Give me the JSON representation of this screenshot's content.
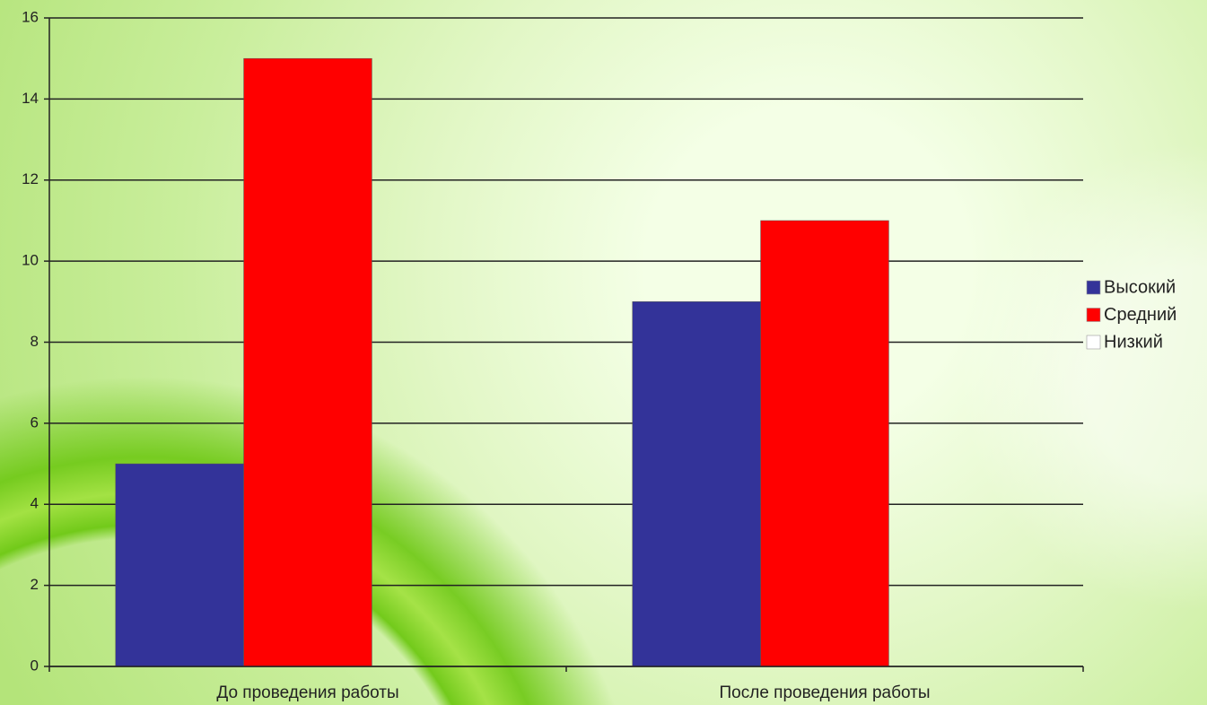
{
  "chart_data": {
    "type": "bar",
    "categories": [
      "До проведения работы",
      "После проведения работы"
    ],
    "series": [
      {
        "name": "Высокий",
        "color": "#333399",
        "values": [
          5,
          9
        ]
      },
      {
        "name": "Средний",
        "color": "#ff0000",
        "values": [
          15,
          11
        ]
      },
      {
        "name": "Низкий",
        "color": "#ffffff",
        "values": [
          0,
          0
        ]
      }
    ],
    "ylim": [
      0,
      16
    ],
    "yticks": [
      0,
      2,
      4,
      6,
      8,
      10,
      12,
      14,
      16
    ],
    "grid": true,
    "legend": "right"
  }
}
